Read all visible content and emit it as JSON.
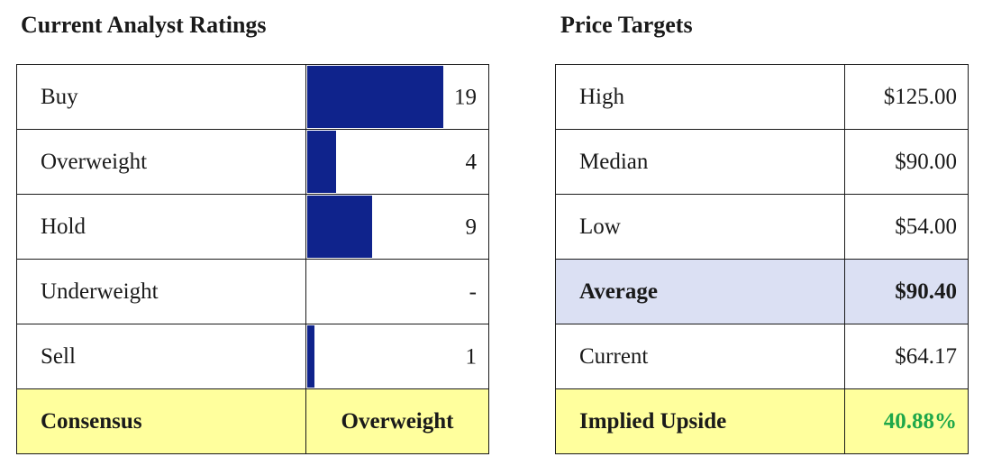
{
  "ratings": {
    "title": "Current Analyst Ratings",
    "max_count": 19,
    "rows": [
      {
        "label": "Buy",
        "count": 19,
        "display": "19"
      },
      {
        "label": "Overweight",
        "count": 4,
        "display": "4"
      },
      {
        "label": "Hold",
        "count": 9,
        "display": "9"
      },
      {
        "label": "Underweight",
        "count": 0,
        "display": "-"
      },
      {
        "label": "Sell",
        "count": 1,
        "display": "1"
      }
    ],
    "consensus_label": "Consensus",
    "consensus_value": "Overweight",
    "bar_color": "#0f238c",
    "highlight_color": "#ffff9d"
  },
  "targets": {
    "title": "Price Targets",
    "rows": [
      {
        "label": "High",
        "value": "$125.00"
      },
      {
        "label": "Median",
        "value": "$90.00"
      },
      {
        "label": "Low",
        "value": "$54.00"
      }
    ],
    "average_label": "Average",
    "average_value": "$90.40",
    "current_label": "Current",
    "current_value": "$64.17",
    "upside_label": "Implied Upside",
    "upside_value": "40.88%",
    "average_color": "#dbe0f3",
    "upside_color": "#1fa84a"
  }
}
